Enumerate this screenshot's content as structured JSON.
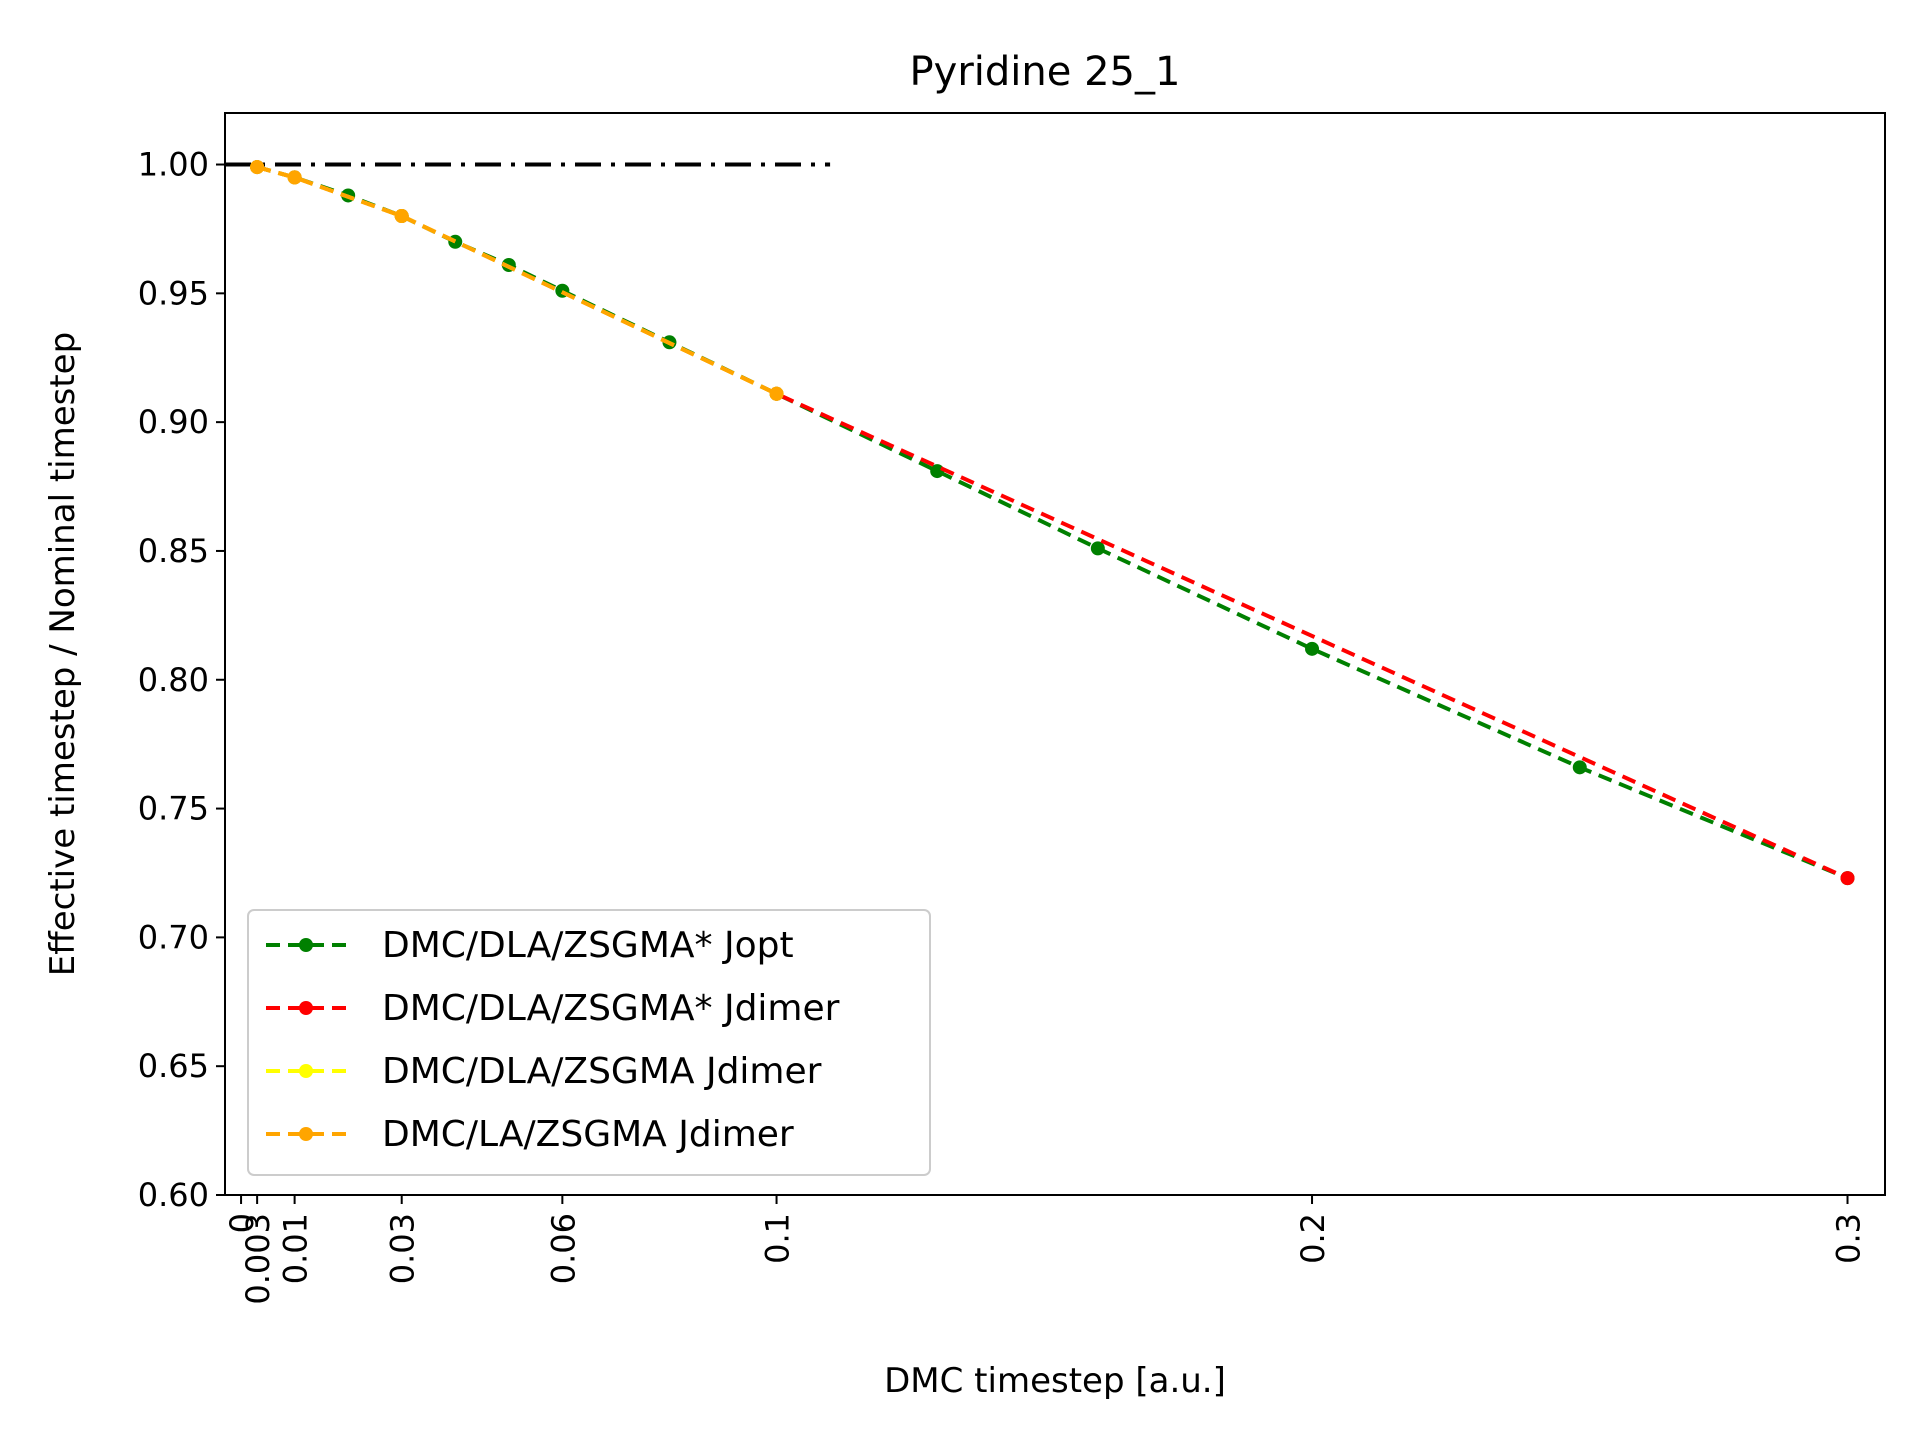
{
  "chart_data": {
    "type": "line",
    "title": "Pyridine 25_1",
    "xlabel": "DMC timestep [a.u.]",
    "ylabel": "Effective timestep / Nominal timestep",
    "xlim": [
      -0.003,
      0.307
    ],
    "ylim": [
      0.6,
      1.02
    ],
    "xticks": [
      {
        "value": 0,
        "label": "0"
      },
      {
        "value": 0.003,
        "label": "0.003"
      },
      {
        "value": 0.01,
        "label": "0.01"
      },
      {
        "value": 0.03,
        "label": "0.03"
      },
      {
        "value": 0.06,
        "label": "0.06"
      },
      {
        "value": 0.1,
        "label": "0.1"
      },
      {
        "value": 0.2,
        "label": "0.2"
      },
      {
        "value": 0.3,
        "label": "0.3"
      }
    ],
    "yticks": [
      {
        "value": 0.6,
        "label": "0.60"
      },
      {
        "value": 0.65,
        "label": "0.65"
      },
      {
        "value": 0.7,
        "label": "0.70"
      },
      {
        "value": 0.75,
        "label": "0.75"
      },
      {
        "value": 0.8,
        "label": "0.80"
      },
      {
        "value": 0.85,
        "label": "0.85"
      },
      {
        "value": 0.9,
        "label": "0.90"
      },
      {
        "value": 0.95,
        "label": "0.95"
      },
      {
        "value": 1.0,
        "label": "1.00"
      }
    ],
    "grid": false,
    "legend_position": "lower-left",
    "reference_line": {
      "y": 1.0,
      "x_start": -0.003,
      "x_end": 0.11,
      "color": "#000000"
    },
    "series": [
      {
        "name": "DMC/DLA/ZSGMA* Jopt",
        "color": "#008000",
        "x": [
          0.003,
          0.01,
          0.02,
          0.03,
          0.04,
          0.05,
          0.06,
          0.08,
          0.1,
          0.13,
          0.16,
          0.2,
          0.25,
          0.3
        ],
        "y": [
          0.999,
          0.995,
          0.988,
          0.98,
          0.97,
          0.961,
          0.951,
          0.931,
          0.911,
          0.881,
          0.851,
          0.812,
          0.766,
          0.723
        ]
      },
      {
        "name": "DMC/DLA/ZSGMA* Jdimer",
        "color": "#ff0000",
        "x": [
          0.003,
          0.01,
          0.03,
          0.1,
          0.3
        ],
        "y": [
          0.999,
          0.995,
          0.98,
          0.911,
          0.723
        ]
      },
      {
        "name": "DMC/DLA/ZSGMA Jdimer",
        "color": "#ffff00",
        "x": [
          0.003,
          0.01,
          0.03,
          0.1
        ],
        "y": [
          0.999,
          0.995,
          0.98,
          0.911
        ]
      },
      {
        "name": "DMC/LA/ZSGMA Jdimer",
        "color": "#ffa500",
        "x": [
          0.003,
          0.01,
          0.03,
          0.1
        ],
        "y": [
          0.999,
          0.995,
          0.98,
          0.911
        ]
      }
    ]
  }
}
